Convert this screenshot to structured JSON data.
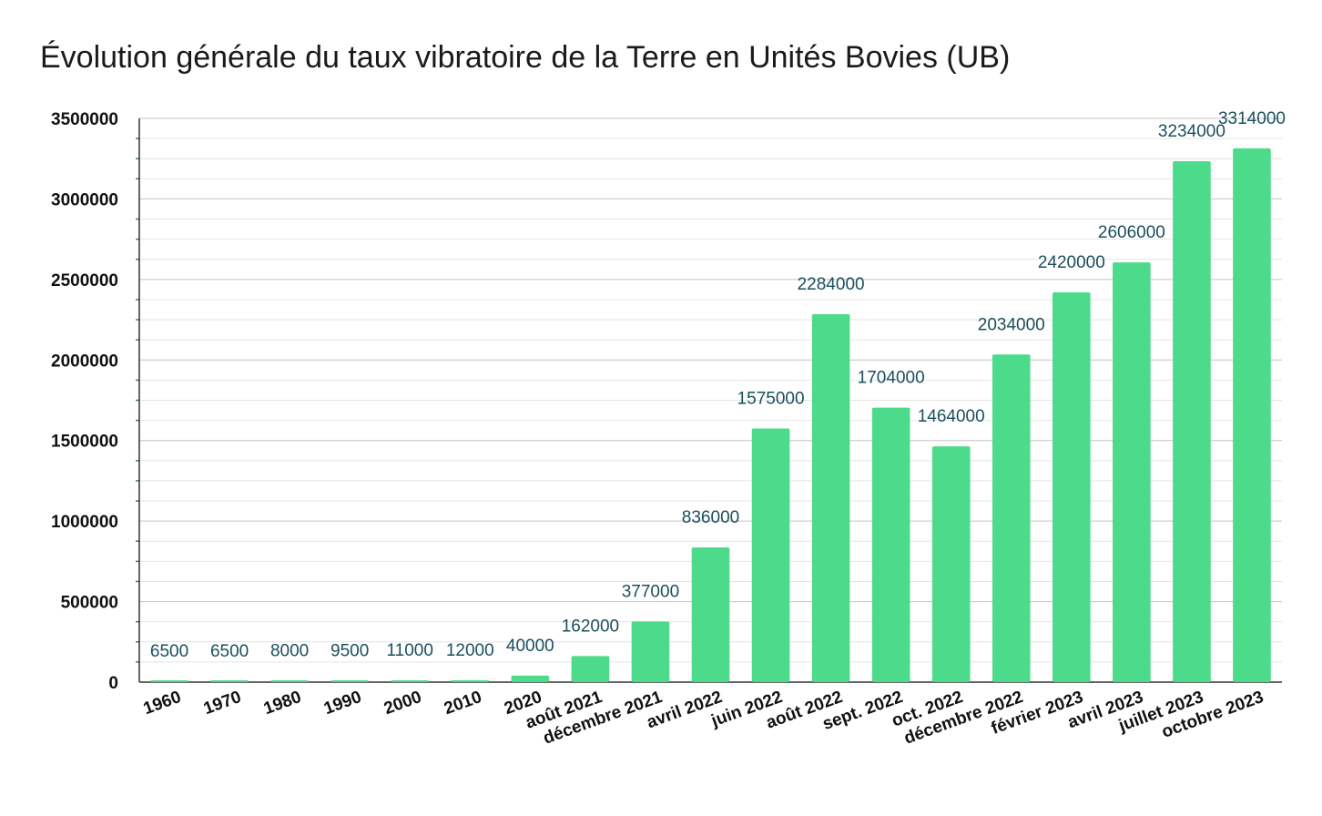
{
  "chart_data": {
    "type": "bar",
    "title": "Évolution générale du taux vibratoire de la Terre en Unités Bovies (UB)",
    "xlabel": "",
    "ylabel": "",
    "ylim": [
      0,
      3500000
    ],
    "yticks": [
      0,
      500000,
      1000000,
      1500000,
      2000000,
      2500000,
      3000000,
      3500000
    ],
    "grid": true,
    "legend": "none",
    "bar_color": "#4cdb8a",
    "label_color": "#1b4f5c",
    "categories": [
      "1960",
      "1970",
      "1980",
      "1990",
      "2000",
      "2010",
      "2020",
      "août 2021",
      "décembre 2021",
      "avril 2022",
      "juin 2022",
      "août 2022",
      "sept. 2022",
      "oct. 2022",
      "décembre 2022",
      "février 2023",
      "avril 2023",
      "juillet 2023",
      "octobre 2023"
    ],
    "values": [
      6500,
      6500,
      8000,
      9500,
      11000,
      12000,
      40000,
      162000,
      377000,
      836000,
      1575000,
      2284000,
      1704000,
      1464000,
      2034000,
      2420000,
      2606000,
      3234000,
      3314000
    ]
  }
}
